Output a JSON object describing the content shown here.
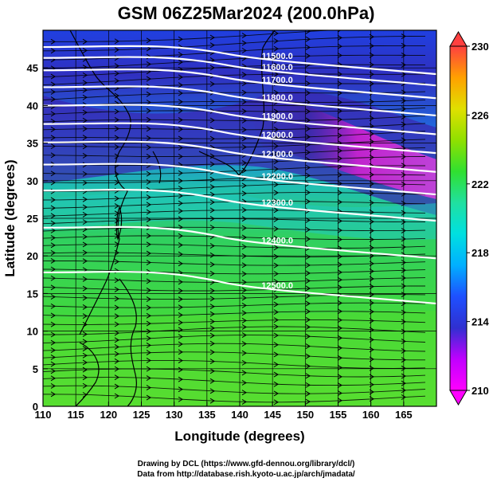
{
  "title": "GSM 06Z25Mar2024 (200.0hPa)",
  "xlabel": "Longitude (degrees)",
  "ylabel": "Latitude  (degrees)",
  "credits": [
    "Drawing by DCL (https://www.gfd-dennou.org/library/dcl/)",
    "Data from http://database.rish.kyoto-u.ac.jp/arch/jmadata/"
  ],
  "chart_data": {
    "type": "heatmap",
    "title": "GSM 06Z25Mar2024 (200.0hPa)",
    "xlabel": "Longitude (degrees)",
    "ylabel": "Latitude  (degrees)",
    "xlim": [
      110,
      170
    ],
    "ylim": [
      0,
      50
    ],
    "x_ticks": [
      "110",
      "115",
      "120",
      "125",
      "130",
      "135",
      "140",
      "145",
      "150",
      "155",
      "160",
      "165"
    ],
    "y_ticks": [
      "0",
      "5",
      "10",
      "15",
      "20",
      "25",
      "30",
      "35",
      "40",
      "45"
    ],
    "colorbar": {
      "min": 210,
      "max": 230,
      "ticks": [
        "210",
        "214",
        "218",
        "222",
        "226",
        "230"
      ],
      "colors": [
        "#ff00ff",
        "#c000ff",
        "#3030d0",
        "#1e50ff",
        "#00b0ff",
        "#00e0e0",
        "#20e0a0",
        "#30e030",
        "#90e000",
        "#e0e000",
        "#ffa000",
        "#ff4040"
      ]
    },
    "contours": [
      {
        "label": "11500.0",
        "lat_at_145": 46.5
      },
      {
        "label": "11600.0",
        "lat_at_145": 45.0
      },
      {
        "label": "11700.0",
        "lat_at_145": 43.3
      },
      {
        "label": "11800.0",
        "lat_at_145": 41.0
      },
      {
        "label": "11900.0",
        "lat_at_145": 38.5
      },
      {
        "label": "12000.0",
        "lat_at_145": 36.0
      },
      {
        "label": "12100.0",
        "lat_at_145": 33.5
      },
      {
        "label": "12200.0",
        "lat_at_145": 30.5
      },
      {
        "label": "12300.0",
        "lat_at_145": 27.0
      },
      {
        "label": "12400.0",
        "lat_at_145": 22.0
      },
      {
        "label": "12500.0",
        "lat_at_145": 16.0
      }
    ],
    "grid": true
  }
}
